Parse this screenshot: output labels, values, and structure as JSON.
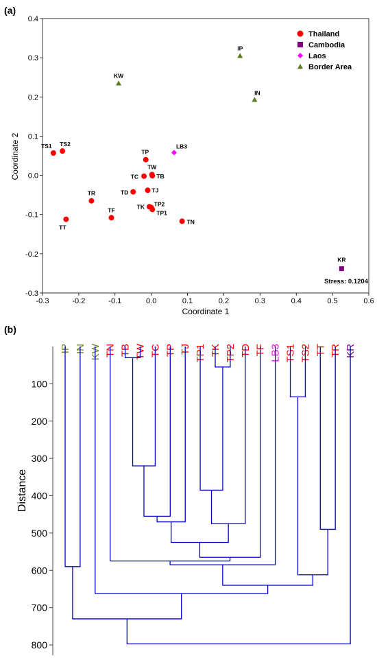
{
  "chart_data": [
    {
      "type": "scatter",
      "panel_label": "(a)",
      "xlabel": "Coordinate 1",
      "ylabel": "Coordinate 2",
      "xlim": [
        -0.3,
        0.6
      ],
      "ylim": [
        -0.3,
        0.4
      ],
      "xticks": [
        "-0.3",
        "-0.2",
        "-0.1",
        "0.0",
        "0.1",
        "0.2",
        "0.3",
        "0.4",
        "0.5",
        "0.6"
      ],
      "yticks": [
        "-0.3",
        "-0.2",
        "-0.1",
        "0.0",
        "0.1",
        "0.2",
        "0.3",
        "0.4"
      ],
      "legend_position": "top-right",
      "annotation": "Stress: 0.1204",
      "series": [
        {
          "name": "Thailand",
          "color": "#ff0000",
          "marker": "circle",
          "points": [
            {
              "label": "TS1",
              "x": -0.27,
              "y": 0.057
            },
            {
              "label": "TS2",
              "x": -0.245,
              "y": 0.062
            },
            {
              "label": "TR",
              "x": -0.165,
              "y": -0.065
            },
            {
              "label": "TT",
              "x": -0.235,
              "y": -0.112
            },
            {
              "label": "TF",
              "x": -0.11,
              "y": -0.108
            },
            {
              "label": "TP",
              "x": -0.015,
              "y": 0.04
            },
            {
              "label": "TW",
              "x": 0.002,
              "y": 0.002
            },
            {
              "label": "TC",
              "x": -0.02,
              "y": -0.002
            },
            {
              "label": "TB",
              "x": 0.003,
              "y": -0.001
            },
            {
              "label": "TD",
              "x": -0.05,
              "y": -0.042
            },
            {
              "label": "TJ",
              "x": -0.01,
              "y": -0.038
            },
            {
              "label": "TK",
              "x": -0.005,
              "y": -0.08
            },
            {
              "label": "TP2",
              "x": 0.0,
              "y": -0.082
            },
            {
              "label": "TP1",
              "x": 0.003,
              "y": -0.087
            },
            {
              "label": "TN",
              "x": 0.085,
              "y": -0.117
            }
          ]
        },
        {
          "name": "Cambodia",
          "color": "#800080",
          "marker": "square",
          "points": [
            {
              "label": "KR",
              "x": 0.525,
              "y": -0.238
            }
          ]
        },
        {
          "name": "Laos",
          "color": "#ff00ff",
          "marker": "diamond",
          "points": [
            {
              "label": "LB3",
              "x": 0.063,
              "y": 0.058
            }
          ]
        },
        {
          "name": "Border Area",
          "color": "#5a7d1a",
          "marker": "triangle",
          "points": [
            {
              "label": "KW",
              "x": -0.09,
              "y": 0.235
            },
            {
              "label": "IP",
              "x": 0.245,
              "y": 0.305
            },
            {
              "label": "IN",
              "x": 0.285,
              "y": 0.193
            }
          ]
        }
      ]
    },
    {
      "type": "dendrogram",
      "panel_label": "(b)",
      "ylabel": "Distance",
      "ylim": [
        0,
        800
      ],
      "yticks": [
        "100",
        "200",
        "300",
        "400",
        "500",
        "600",
        "700",
        "800"
      ],
      "leaves": [
        {
          "label": "IP",
          "color": "#6b8e23"
        },
        {
          "label": "IN",
          "color": "#6b8e23"
        },
        {
          "label": "KW",
          "color": "#6b8e23"
        },
        {
          "label": "TN",
          "color": "#ff0000"
        },
        {
          "label": "TB",
          "color": "#ff0000"
        },
        {
          "label": "TW",
          "color": "#ff0000"
        },
        {
          "label": "TC",
          "color": "#ff0000"
        },
        {
          "label": "TP",
          "color": "#ff0000"
        },
        {
          "label": "TJ",
          "color": "#ff0000"
        },
        {
          "label": "TP1",
          "color": "#ff0000"
        },
        {
          "label": "TK",
          "color": "#ff0000"
        },
        {
          "label": "TP2",
          "color": "#ff0000"
        },
        {
          "label": "TD",
          "color": "#ff0000"
        },
        {
          "label": "TF",
          "color": "#ff0000"
        },
        {
          "label": "LB3",
          "color": "#ff00ff"
        },
        {
          "label": "TS1",
          "color": "#ff0000"
        },
        {
          "label": "TS2",
          "color": "#ff0000"
        },
        {
          "label": "TT",
          "color": "#ff0000"
        },
        {
          "label": "TR",
          "color": "#ff0000"
        },
        {
          "label": "KR",
          "color": "#800080"
        }
      ],
      "link_color": "#0000cc",
      "merges": [
        {
          "a": "L:TB",
          "b": "L:TW",
          "height": 30
        },
        {
          "a": "L:TK",
          "b": "L:TP2",
          "height": 55
        },
        {
          "a": "L:TS1",
          "b": "L:TS2",
          "height": 135
        },
        {
          "a": "N:0",
          "b": "L:TC",
          "height": 320
        },
        {
          "a": "L:TP1",
          "b": "N:1",
          "height": 385
        },
        {
          "a": "N:3",
          "b": "L:TP",
          "height": 455
        },
        {
          "a": "N:5",
          "b": "L:TJ",
          "height": 470
        },
        {
          "a": "N:4",
          "b": "L:TD",
          "height": 475
        },
        {
          "a": "L:TT",
          "b": "L:TR",
          "height": 490
        },
        {
          "a": "N:6",
          "b": "N:7",
          "height": 525
        },
        {
          "a": "N:9",
          "b": "L:TF",
          "height": 565
        },
        {
          "a": "L:TN",
          "b": "N:10",
          "height": 575
        },
        {
          "a": "N:11",
          "b": "L:LB3",
          "height": 585
        },
        {
          "a": "L:IP",
          "b": "L:IN",
          "height": 590
        },
        {
          "a": "N:2",
          "b": "N:8",
          "height": 612
        },
        {
          "a": "N:12",
          "b": "N:14",
          "height": 640
        },
        {
          "a": "L:KW",
          "b": "N:15",
          "height": 662
        },
        {
          "a": "N:13",
          "b": "N:16",
          "height": 730
        },
        {
          "a": "N:17",
          "b": "L:KR",
          "height": 797
        }
      ]
    }
  ]
}
